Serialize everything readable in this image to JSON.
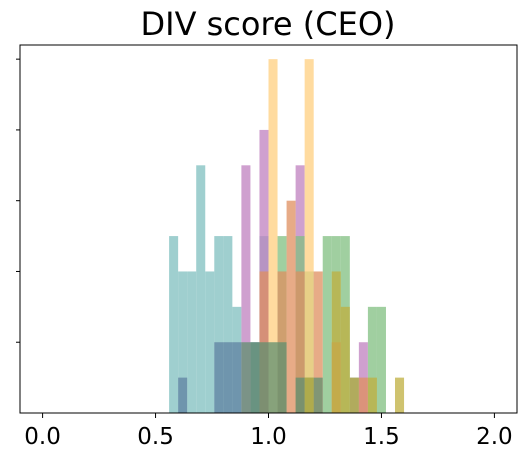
{
  "chart_data": {
    "type": "bar",
    "subtype": "overlapping-histogram",
    "title": "DIV score (CEO)",
    "xlabel": "",
    "ylabel": "",
    "xlim": [
      -0.1,
      2.1
    ],
    "ylim": [
      0,
      5.2
    ],
    "x_ticks": [
      0.0,
      0.5,
      1.0,
      1.5,
      2.0
    ],
    "x_tick_labels": [
      "0.0",
      "0.5",
      "1.0",
      "1.5",
      "2.0"
    ],
    "y_ticks": [
      1,
      2,
      3,
      4,
      5
    ],
    "y_tick_labels": [
      "",
      "",
      "",
      "",
      ""
    ],
    "grid": false,
    "legend": "none",
    "bin_width": 0.04,
    "series": [
      {
        "color": "#7fbfbf",
        "bins": [
          {
            "x": 0.58,
            "value": 2.5
          },
          {
            "x": 0.62,
            "value": 2.0
          },
          {
            "x": 0.66,
            "value": 2.0
          },
          {
            "x": 0.7,
            "value": 3.5
          },
          {
            "x": 0.74,
            "value": 2.0
          },
          {
            "x": 0.78,
            "value": 2.5
          },
          {
            "x": 0.82,
            "value": 2.5
          },
          {
            "x": 0.86,
            "value": 1.5
          },
          {
            "x": 0.98,
            "value": 2.5
          }
        ]
      },
      {
        "color": "#5f81a2",
        "bins": [
          {
            "x": 0.62,
            "value": 0.5
          },
          {
            "x": 0.78,
            "value": 1.0
          },
          {
            "x": 0.82,
            "value": 1.0
          },
          {
            "x": 0.86,
            "value": 1.0
          },
          {
            "x": 0.94,
            "value": 1.0
          },
          {
            "x": 1.38,
            "value": 0.5
          }
        ]
      },
      {
        "color": "#bf80bf",
        "bins": [
          {
            "x": 0.9,
            "value": 3.5
          },
          {
            "x": 0.98,
            "value": 4.0
          },
          {
            "x": 1.14,
            "value": 3.5
          },
          {
            "x": 1.42,
            "value": 1.0
          }
        ]
      },
      {
        "color": "#80bf80",
        "bins": [
          {
            "x": 1.06,
            "value": 2.5
          },
          {
            "x": 1.14,
            "value": 2.5
          },
          {
            "x": 1.18,
            "value": 2.0
          },
          {
            "x": 1.26,
            "value": 2.5
          },
          {
            "x": 1.3,
            "value": 2.5
          },
          {
            "x": 1.34,
            "value": 2.5
          },
          {
            "x": 1.46,
            "value": 1.5
          },
          {
            "x": 1.5,
            "value": 1.5
          }
        ]
      },
      {
        "color": "#ffcf7f",
        "bins": [
          {
            "x": 1.02,
            "value": 5.0
          },
          {
            "x": 1.18,
            "value": 5.0
          }
        ]
      },
      {
        "color": "#df8f5f",
        "bins": [
          {
            "x": 0.98,
            "value": 2.0
          },
          {
            "x": 1.06,
            "value": 2.0
          },
          {
            "x": 1.1,
            "value": 3.0
          },
          {
            "x": 1.14,
            "value": 2.0
          },
          {
            "x": 1.22,
            "value": 2.0
          },
          {
            "x": 1.3,
            "value": 1.0
          },
          {
            "x": 1.42,
            "value": 0.5
          }
        ]
      },
      {
        "color": "#5f8f6f",
        "bins": [
          {
            "x": 0.9,
            "value": 1.0
          },
          {
            "x": 0.94,
            "value": 1.0
          },
          {
            "x": 0.98,
            "value": 1.0
          },
          {
            "x": 1.02,
            "value": 1.0
          },
          {
            "x": 1.06,
            "value": 1.0
          },
          {
            "x": 1.14,
            "value": 0.5
          },
          {
            "x": 1.18,
            "value": 0.5
          },
          {
            "x": 1.22,
            "value": 0.5
          }
        ]
      },
      {
        "color": "#bfaf3f",
        "bins": [
          {
            "x": 1.18,
            "value": 0.5
          },
          {
            "x": 1.3,
            "value": 2.0
          },
          {
            "x": 1.34,
            "value": 1.5
          },
          {
            "x": 1.38,
            "value": 0.5
          },
          {
            "x": 1.46,
            "value": 0.5
          },
          {
            "x": 1.58,
            "value": 0.5
          }
        ]
      }
    ]
  }
}
